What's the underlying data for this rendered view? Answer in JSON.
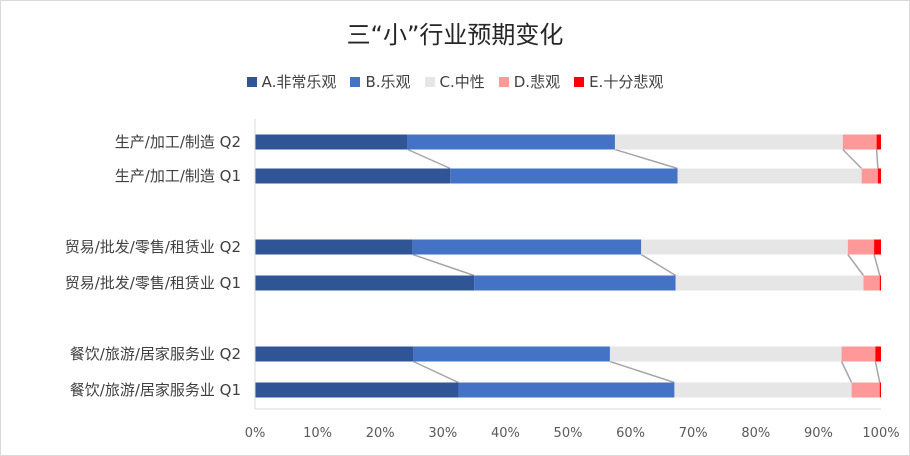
{
  "chart_data": {
    "type": "bar",
    "orientation": "horizontal",
    "stacked": "percent",
    "title": "三“小”行业预期变化",
    "legend_position": "top",
    "categories": [
      "生产/加工/制造 Q2",
      "生产/加工/制造 Q1",
      "贸易/批发/零售/租赁业 Q2",
      "贸易/批发/零售/租赁业 Q1",
      "餐饮/旅游/居家服务业 Q2",
      "餐饮/旅游/居家服务业 Q1"
    ],
    "series": [
      {
        "name": "A.非常乐观",
        "color": "#2f5597",
        "values": [
          24.4,
          31.2,
          25.2,
          35.0,
          25.3,
          32.5
        ]
      },
      {
        "name": "B.乐观",
        "color": "#4472c4",
        "values": [
          33.1,
          36.3,
          36.5,
          32.2,
          31.4,
          34.5
        ]
      },
      {
        "name": "C.中性",
        "color": "#e7e6e6",
        "values": [
          36.4,
          29.4,
          33.0,
          30.0,
          37.0,
          28.3
        ]
      },
      {
        "name": "D.悲观",
        "color": "#ff9999",
        "values": [
          5.4,
          2.6,
          4.2,
          2.6,
          5.4,
          4.5
        ]
      },
      {
        "name": "E.十分悲观",
        "color": "#ff0000",
        "values": [
          0.7,
          0.5,
          1.1,
          0.2,
          0.9,
          0.2
        ]
      }
    ],
    "xlim": [
      0,
      100
    ],
    "x_ticks": [
      "0%",
      "10%",
      "20%",
      "30%",
      "40%",
      "50%",
      "60%",
      "70%",
      "80%",
      "90%",
      "100%"
    ],
    "series_lines": true,
    "grid": false
  }
}
